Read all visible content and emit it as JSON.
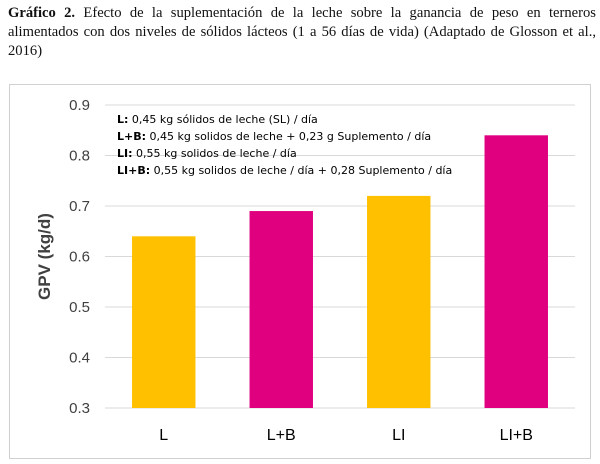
{
  "caption": {
    "label": "Gráfico 2.",
    "text": "Efecto de la suplementación de la leche sobre la ganancia de peso en terneros alimentados con dos niveles de sólidos lácteos (1 a 56 días de vida) (Adaptado de Glosson et al., 2016)"
  },
  "chart_data": {
    "type": "bar",
    "categories": [
      "L",
      "L+B",
      "LI",
      "LI+B"
    ],
    "values": [
      0.64,
      0.69,
      0.72,
      0.84
    ],
    "bar_colors": [
      "#FFC000",
      "#E0007F",
      "#FFC000",
      "#E0007F"
    ],
    "title": "",
    "xlabel": "",
    "ylabel": "GPV (kg/d)",
    "ylim": [
      0.3,
      0.9
    ],
    "yticks": [
      "0.3",
      "0.4",
      "0.5",
      "0.6",
      "0.7",
      "0.8",
      "0.9"
    ],
    "grid": true,
    "annotations": [
      {
        "key": "L:",
        "text": " 0,45 kg sólidos de leche (SL) / día"
      },
      {
        "key": "L+B:",
        "text": " 0,45 kg solidos de leche + 0,23 g Suplemento / día"
      },
      {
        "key": "LI:",
        "text": " 0,55 kg solidos de leche / día"
      },
      {
        "key": "LI+B:",
        "text": " 0,55 kg solidos de leche / día + 0,28 Suplemento / día"
      }
    ]
  }
}
